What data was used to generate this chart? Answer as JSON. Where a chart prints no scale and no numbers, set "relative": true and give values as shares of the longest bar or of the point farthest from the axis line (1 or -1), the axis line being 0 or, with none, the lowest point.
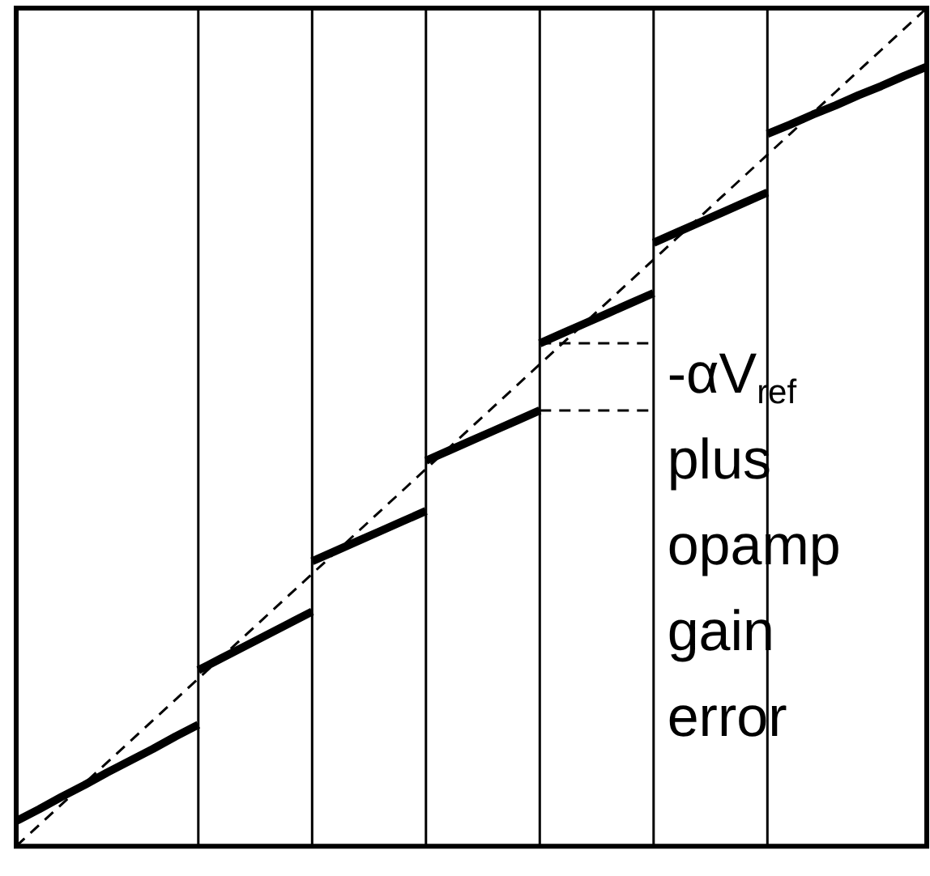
{
  "chart_data": {
    "type": "line",
    "relative": true,
    "legend": false,
    "grid": false,
    "marker": "none",
    "categories": [
      null,
      null,
      null,
      null,
      null,
      null,
      null,
      null,
      null,
      null,
      null,
      null,
      null,
      null,
      null,
      null,
      null,
      null,
      null,
      null,
      null,
      null,
      null,
      null,
      null,
      null,
      null,
      null,
      null,
      null,
      null,
      null,
      null,
      null,
      null,
      null,
      null,
      null,
      null,
      null,
      null
    ],
    "series": [
      {
        "color": "#000000",
        "line_style": "dashed",
        "values": [
          0,
          0.025,
          0.05,
          0.075,
          0.1,
          0.125,
          0.15,
          0.175,
          0.2,
          0.225,
          0.25,
          0.275,
          0.3,
          0.325,
          0.35,
          0.375,
          0.4,
          0.425,
          0.45,
          0.475,
          0.5,
          0.525,
          0.55,
          0.575,
          0.6,
          0.625,
          0.65,
          0.675,
          0.7,
          0.725,
          0.75,
          0.775,
          0.8,
          0.825,
          0.85,
          0.875,
          0.9,
          0.925,
          0.95,
          0.975,
          1
        ]
      },
      {
        "color": "#000000",
        "line_style": "solid",
        "values": [
          0.03,
          0.044,
          0.059,
          0.073,
          0.088,
          0.102,
          0.116,
          0.131,
          0.145,
          null,
          null,
          null,
          null,
          null,
          null,
          null,
          null,
          null,
          null,
          null,
          null,
          null,
          null,
          null,
          null,
          null,
          null,
          null,
          null,
          null,
          null,
          null,
          null,
          null,
          null,
          null,
          null,
          null,
          null,
          null,
          null
        ]
      },
      {
        "color": "#000000",
        "line_style": "solid",
        "values": [
          null,
          null,
          null,
          null,
          null,
          null,
          null,
          null,
          0.21,
          0.224,
          0.238,
          0.252,
          0.266,
          0.28,
          null,
          null,
          null,
          null,
          null,
          null,
          null,
          null,
          null,
          null,
          null,
          null,
          null,
          null,
          null,
          null,
          null,
          null,
          null,
          null,
          null,
          null,
          null,
          null,
          null,
          null,
          null
        ]
      },
      {
        "color": "#000000",
        "line_style": "solid",
        "values": [
          null,
          null,
          null,
          null,
          null,
          null,
          null,
          null,
          null,
          null,
          null,
          null,
          null,
          0.34,
          0.352,
          0.364,
          0.376,
          0.388,
          0.4,
          null,
          null,
          null,
          null,
          null,
          null,
          null,
          null,
          null,
          null,
          null,
          null,
          null,
          null,
          null,
          null,
          null,
          null,
          null,
          null,
          null,
          null
        ]
      },
      {
        "color": "#000000",
        "line_style": "solid",
        "values": [
          null,
          null,
          null,
          null,
          null,
          null,
          null,
          null,
          null,
          null,
          null,
          null,
          null,
          null,
          null,
          null,
          null,
          null,
          0.46,
          0.472,
          0.484,
          0.496,
          0.508,
          0.52,
          null,
          null,
          null,
          null,
          null,
          null,
          null,
          null,
          null,
          null,
          null,
          null,
          null,
          null,
          null,
          null,
          null
        ]
      },
      {
        "color": "#000000",
        "line_style": "solid",
        "values": [
          null,
          null,
          null,
          null,
          null,
          null,
          null,
          null,
          null,
          null,
          null,
          null,
          null,
          null,
          null,
          null,
          null,
          null,
          null,
          null,
          null,
          null,
          null,
          0.6,
          0.612,
          0.624,
          0.636,
          0.648,
          0.66,
          null,
          null,
          null,
          null,
          null,
          null,
          null,
          null,
          null,
          null,
          null,
          null
        ]
      },
      {
        "color": "#000000",
        "line_style": "solid",
        "values": [
          null,
          null,
          null,
          null,
          null,
          null,
          null,
          null,
          null,
          null,
          null,
          null,
          null,
          null,
          null,
          null,
          null,
          null,
          null,
          null,
          null,
          null,
          null,
          null,
          null,
          null,
          null,
          null,
          0.72,
          0.732,
          0.744,
          0.756,
          0.768,
          0.78,
          null,
          null,
          null,
          null,
          null,
          null,
          null
        ]
      },
      {
        "color": "#000000",
        "line_style": "solid",
        "values": [
          null,
          null,
          null,
          null,
          null,
          null,
          null,
          null,
          null,
          null,
          null,
          null,
          null,
          null,
          null,
          null,
          null,
          null,
          null,
          null,
          null,
          null,
          null,
          null,
          null,
          null,
          null,
          null,
          null,
          null,
          null,
          null,
          null,
          0.85,
          0.861,
          0.873,
          0.884,
          0.896,
          0.907,
          0.919,
          0.93
        ]
      },
      {
        "color": "#000000",
        "line_style": "dashed",
        "values": [
          null,
          null,
          null,
          null,
          null,
          null,
          null,
          null,
          null,
          null,
          null,
          null,
          null,
          null,
          null,
          null,
          null,
          null,
          null,
          null,
          null,
          null,
          null,
          0.6,
          0.6,
          0.6,
          0.6,
          0.6,
          0.6,
          null,
          null,
          null,
          null,
          null,
          null,
          null,
          null,
          null,
          null,
          null,
          null
        ]
      },
      {
        "color": "#000000",
        "line_style": "dashed",
        "values": [
          null,
          null,
          null,
          null,
          null,
          null,
          null,
          null,
          null,
          null,
          null,
          null,
          null,
          null,
          null,
          null,
          null,
          null,
          null,
          null,
          null,
          null,
          null,
          0.52,
          0.52,
          0.52,
          0.52,
          0.52,
          0.52,
          null,
          null,
          null,
          null,
          null,
          null,
          null,
          null,
          null,
          null,
          null,
          null
        ]
      }
    ],
    "annotations": [
      "-αV$_{ref}$\nplus\nopamp\ngain\nerror"
    ]
  }
}
